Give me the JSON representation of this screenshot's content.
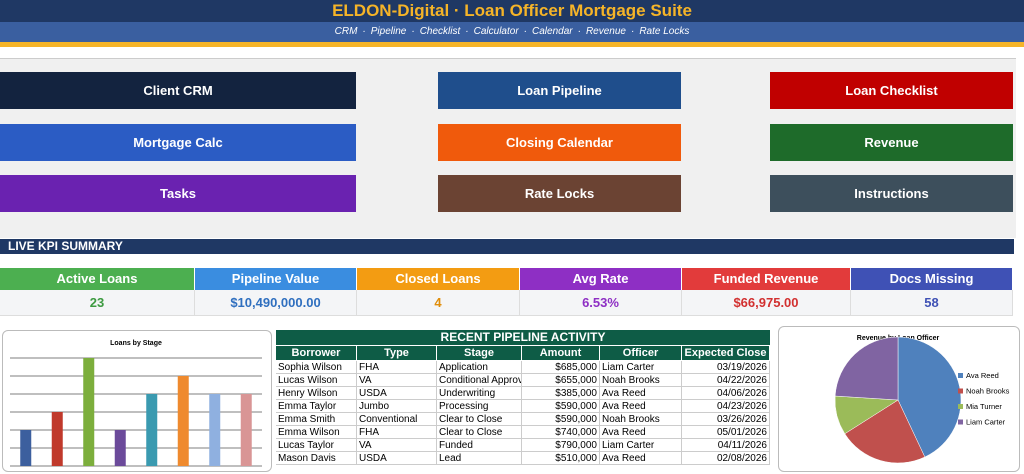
{
  "header": {
    "title": "ELDON-Digital  ·  Loan Officer Mortgage Suite",
    "nav": [
      "CRM",
      "Pipeline",
      "Checklist",
      "Calculator",
      "Calendar",
      "Revenue",
      "Rate Locks"
    ],
    "separator": "·"
  },
  "buttons": [
    {
      "label": "Client CRM",
      "color": "#13233f"
    },
    {
      "label": "Loan Pipeline",
      "color": "#1f4e8c"
    },
    {
      "label": "Loan Checklist",
      "color": "#c00000"
    },
    {
      "label": "Mortgage Calc",
      "color": "#2b5cc4"
    },
    {
      "label": "Closing Calendar",
      "color": "#f05a0c"
    },
    {
      "label": "Revenue",
      "color": "#1e6b2a"
    },
    {
      "label": "Tasks",
      "color": "#6a22b0"
    },
    {
      "label": "Rate Locks",
      "color": "#6b4333"
    },
    {
      "label": "Instructions",
      "color": "#3d4f5c"
    }
  ],
  "kpi": {
    "title": "LIVE KPI SUMMARY",
    "items": [
      {
        "label": "Active Loans",
        "value": "23",
        "color": "#4caf50",
        "text_color": "#3c9a40"
      },
      {
        "label": "Pipeline Value",
        "value": "$10,490,000.00",
        "color": "#3a8de0",
        "text_color": "#2f6fbf"
      },
      {
        "label": "Closed Loans",
        "value": "4",
        "color": "#f39c12",
        "text_color": "#e08e0b"
      },
      {
        "label": "Avg Rate",
        "value": "6.53%",
        "color": "#8e2fc4",
        "text_color": "#8e2fc4"
      },
      {
        "label": "Funded Revenue",
        "value": "$66,975.00",
        "color": "#e23b3b",
        "text_color": "#d23030"
      },
      {
        "label": "Docs Missing",
        "value": "58",
        "color": "#3f51b5",
        "text_color": "#3f51b5"
      }
    ]
  },
  "table": {
    "title": "RECENT PIPELINE ACTIVITY",
    "columns": [
      "Borrower",
      "Type",
      "Stage",
      "Amount",
      "Officer",
      "Expected Close"
    ],
    "rows": [
      [
        "Sophia Wilson",
        "FHA",
        "Application",
        "$685,000",
        "Liam Carter",
        "03/19/2026"
      ],
      [
        "Lucas Wilson",
        "VA",
        "Conditional Approva",
        "$655,000",
        "Noah Brooks",
        "04/22/2026"
      ],
      [
        "Henry Wilson",
        "USDA",
        "Underwriting",
        "$385,000",
        "Ava Reed",
        "04/06/2026"
      ],
      [
        "Emma Taylor",
        "Jumbo",
        "Processing",
        "$590,000",
        "Ava Reed",
        "04/23/2026"
      ],
      [
        "Emma Smith",
        "Conventional",
        "Clear to Close",
        "$590,000",
        "Noah Brooks",
        "03/26/2026"
      ],
      [
        "Emma Wilson",
        "FHA",
        "Clear to Close",
        "$740,000",
        "Ava Reed",
        "05/01/2026"
      ],
      [
        "Lucas Taylor",
        "VA",
        "Funded",
        "$790,000",
        "Liam Carter",
        "04/11/2026"
      ],
      [
        "Mason Davis",
        "USDA",
        "Lead",
        "$510,000",
        "Ava Reed",
        "02/08/2026"
      ]
    ]
  },
  "chart_data": [
    {
      "type": "bar",
      "title": "Loans by Stage",
      "categories": [
        null,
        null,
        null,
        null,
        null,
        null,
        null,
        null
      ],
      "values": [
        2,
        3,
        6,
        2,
        4,
        5,
        4,
        4
      ],
      "colors": [
        "#3c5f9e",
        "#c0392b",
        "#7cae3c",
        "#6b4a9a",
        "#3a9ab0",
        "#ef8a2e",
        "#8fb0e0",
        "#d99595"
      ],
      "ylim": [
        0,
        6.5
      ],
      "yticks": [
        0,
        1,
        2,
        3,
        4,
        5,
        6
      ],
      "grid": true
    },
    {
      "type": "pie",
      "title": "Revenue by Loan Officer",
      "categories": [
        "Ava Reed",
        "Noah Brooks",
        "Mia Turner",
        "Liam Carter"
      ],
      "values": [
        43,
        23,
        10,
        24
      ],
      "colors": [
        "#4f81bd",
        "#c0504d",
        "#9bbb59",
        "#8064a2"
      ],
      "legend": "right"
    }
  ]
}
